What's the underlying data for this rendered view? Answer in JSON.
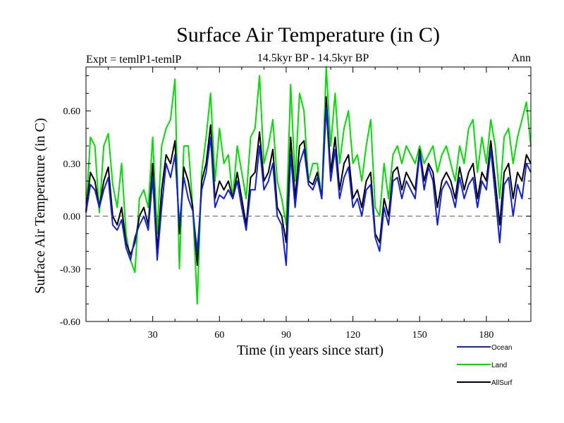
{
  "chart_data": {
    "type": "line",
    "title": "Surface Air Temperature (in C)",
    "subtitle": "14.5kyr BP - 14.5kyr BP",
    "left_label": "Expt = temlP1-temlP",
    "right_label": "Ann",
    "xlabel": "Time (in years since start)",
    "ylabel": "Surface Air Temperature (in C)",
    "xlim": [
      0,
      200
    ],
    "ylim": [
      -0.6,
      0.85
    ],
    "xticks": [
      30,
      60,
      90,
      120,
      150,
      180
    ],
    "yticks": [
      -0.6,
      -0.3,
      0.0,
      0.3,
      0.6
    ],
    "ytick_labels": [
      "-0.60",
      "-0.30",
      "0.00",
      "0.30",
      "0.60"
    ],
    "zero_line": true,
    "legend_position": "bottom-right",
    "series": [
      {
        "name": "Land",
        "color": "#00e000",
        "points": [
          [
            0,
            0.03
          ],
          [
            2,
            0.45
          ],
          [
            4,
            0.4
          ],
          [
            6,
            0.02
          ],
          [
            8,
            0.4
          ],
          [
            10,
            0.47
          ],
          [
            12,
            0.18
          ],
          [
            14,
            0.05
          ],
          [
            16,
            0.3
          ],
          [
            18,
            -0.1
          ],
          [
            20,
            -0.25
          ],
          [
            22,
            -0.32
          ],
          [
            24,
            0.1
          ],
          [
            26,
            0.15
          ],
          [
            28,
            0.05
          ],
          [
            30,
            0.45
          ],
          [
            32,
            -0.1
          ],
          [
            34,
            0.4
          ],
          [
            36,
            0.5
          ],
          [
            38,
            0.55
          ],
          [
            40,
            0.78
          ],
          [
            42,
            -0.3
          ],
          [
            44,
            0.4
          ],
          [
            46,
            0.4
          ],
          [
            48,
            0.05
          ],
          [
            50,
            -0.5
          ],
          [
            52,
            0.25
          ],
          [
            54,
            0.45
          ],
          [
            56,
            0.7
          ],
          [
            58,
            0.2
          ],
          [
            60,
            0.5
          ],
          [
            62,
            0.3
          ],
          [
            64,
            0.35
          ],
          [
            66,
            0.1
          ],
          [
            68,
            0.4
          ],
          [
            70,
            0.25
          ],
          [
            72,
            0.1
          ],
          [
            74,
            0.45
          ],
          [
            76,
            0.5
          ],
          [
            78,
            0.8
          ],
          [
            80,
            0.3
          ],
          [
            82,
            0.4
          ],
          [
            84,
            0.55
          ],
          [
            86,
            0.2
          ],
          [
            88,
            0.1
          ],
          [
            90,
            -0.05
          ],
          [
            92,
            0.75
          ],
          [
            94,
            0.2
          ],
          [
            96,
            0.7
          ],
          [
            98,
            0.6
          ],
          [
            100,
            0.2
          ],
          [
            102,
            0.3
          ],
          [
            104,
            0.3
          ],
          [
            106,
            0.1
          ],
          [
            108,
            0.85
          ],
          [
            110,
            0.4
          ],
          [
            112,
            0.7
          ],
          [
            114,
            0.3
          ],
          [
            116,
            0.5
          ],
          [
            118,
            0.6
          ],
          [
            120,
            0.3
          ],
          [
            122,
            0.35
          ],
          [
            124,
            0.2
          ],
          [
            126,
            0.4
          ],
          [
            128,
            0.55
          ],
          [
            130,
            0.05
          ],
          [
            132,
            0.0
          ],
          [
            134,
            0.3
          ],
          [
            136,
            0.1
          ],
          [
            138,
            0.35
          ],
          [
            140,
            0.4
          ],
          [
            142,
            0.3
          ],
          [
            144,
            0.4
          ],
          [
            146,
            0.35
          ],
          [
            148,
            0.3
          ],
          [
            150,
            0.4
          ],
          [
            152,
            0.3
          ],
          [
            154,
            0.35
          ],
          [
            156,
            0.4
          ],
          [
            158,
            0.25
          ],
          [
            160,
            0.35
          ],
          [
            162,
            0.4
          ],
          [
            164,
            0.3
          ],
          [
            166,
            0.2
          ],
          [
            168,
            0.4
          ],
          [
            170,
            0.3
          ],
          [
            172,
            0.5
          ],
          [
            174,
            0.55
          ],
          [
            176,
            0.25
          ],
          [
            178,
            0.45
          ],
          [
            180,
            0.3
          ],
          [
            182,
            0.55
          ],
          [
            184,
            0.4
          ],
          [
            186,
            0.1
          ],
          [
            188,
            0.45
          ],
          [
            190,
            0.5
          ],
          [
            192,
            0.3
          ],
          [
            194,
            0.45
          ],
          [
            196,
            0.55
          ],
          [
            198,
            0.65
          ],
          [
            200,
            0.4
          ]
        ]
      },
      {
        "name": "AllSurf",
        "color": "#000000",
        "points": [
          [
            0,
            0.03
          ],
          [
            2,
            0.25
          ],
          [
            4,
            0.2
          ],
          [
            6,
            0.05
          ],
          [
            8,
            0.2
          ],
          [
            10,
            0.28
          ],
          [
            12,
            0.0
          ],
          [
            14,
            -0.05
          ],
          [
            16,
            0.05
          ],
          [
            18,
            -0.15
          ],
          [
            20,
            -0.22
          ],
          [
            22,
            -0.15
          ],
          [
            24,
            0.0
          ],
          [
            26,
            0.05
          ],
          [
            28,
            -0.05
          ],
          [
            30,
            0.3
          ],
          [
            32,
            -0.2
          ],
          [
            34,
            0.15
          ],
          [
            36,
            0.35
          ],
          [
            38,
            0.3
          ],
          [
            40,
            0.43
          ],
          [
            42,
            -0.1
          ],
          [
            44,
            0.28
          ],
          [
            46,
            0.2
          ],
          [
            48,
            0.05
          ],
          [
            50,
            -0.28
          ],
          [
            52,
            0.2
          ],
          [
            54,
            0.3
          ],
          [
            56,
            0.52
          ],
          [
            58,
            0.1
          ],
          [
            60,
            0.2
          ],
          [
            62,
            0.15
          ],
          [
            64,
            0.2
          ],
          [
            66,
            0.1
          ],
          [
            68,
            0.25
          ],
          [
            70,
            0.1
          ],
          [
            72,
            -0.05
          ],
          [
            74,
            0.22
          ],
          [
            76,
            0.25
          ],
          [
            78,
            0.48
          ],
          [
            80,
            0.2
          ],
          [
            82,
            0.25
          ],
          [
            84,
            0.38
          ],
          [
            86,
            0.05
          ],
          [
            88,
            0.0
          ],
          [
            90,
            -0.15
          ],
          [
            92,
            0.45
          ],
          [
            94,
            0.1
          ],
          [
            96,
            0.4
          ],
          [
            98,
            0.43
          ],
          [
            100,
            0.2
          ],
          [
            102,
            0.18
          ],
          [
            104,
            0.25
          ],
          [
            106,
            0.1
          ],
          [
            108,
            0.68
          ],
          [
            110,
            0.25
          ],
          [
            112,
            0.45
          ],
          [
            114,
            0.15
          ],
          [
            116,
            0.3
          ],
          [
            118,
            0.35
          ],
          [
            120,
            0.1
          ],
          [
            122,
            0.15
          ],
          [
            124,
            0.05
          ],
          [
            126,
            0.2
          ],
          [
            128,
            0.25
          ],
          [
            130,
            -0.1
          ],
          [
            132,
            -0.15
          ],
          [
            134,
            0.1
          ],
          [
            136,
            0.0
          ],
          [
            138,
            0.25
          ],
          [
            140,
            0.28
          ],
          [
            142,
            0.15
          ],
          [
            144,
            0.25
          ],
          [
            146,
            0.2
          ],
          [
            148,
            0.15
          ],
          [
            150,
            0.38
          ],
          [
            152,
            0.2
          ],
          [
            154,
            0.3
          ],
          [
            156,
            0.25
          ],
          [
            158,
            0.05
          ],
          [
            160,
            0.2
          ],
          [
            162,
            0.25
          ],
          [
            164,
            0.2
          ],
          [
            166,
            0.1
          ],
          [
            168,
            0.28
          ],
          [
            170,
            0.15
          ],
          [
            172,
            0.25
          ],
          [
            174,
            0.3
          ],
          [
            176,
            0.1
          ],
          [
            178,
            0.25
          ],
          [
            180,
            0.2
          ],
          [
            182,
            0.43
          ],
          [
            184,
            0.2
          ],
          [
            186,
            -0.05
          ],
          [
            188,
            0.25
          ],
          [
            190,
            0.3
          ],
          [
            192,
            0.1
          ],
          [
            194,
            0.25
          ],
          [
            196,
            0.2
          ],
          [
            198,
            0.35
          ],
          [
            200,
            0.3
          ]
        ]
      },
      {
        "name": "Ocean",
        "color": "#1020e0",
        "points": [
          [
            0,
            0.02
          ],
          [
            2,
            0.18
          ],
          [
            4,
            0.15
          ],
          [
            6,
            0.05
          ],
          [
            8,
            0.15
          ],
          [
            10,
            0.22
          ],
          [
            12,
            -0.05
          ],
          [
            14,
            -0.08
          ],
          [
            16,
            -0.02
          ],
          [
            18,
            -0.18
          ],
          [
            20,
            -0.25
          ],
          [
            22,
            -0.12
          ],
          [
            24,
            -0.05
          ],
          [
            26,
            0.0
          ],
          [
            28,
            -0.08
          ],
          [
            30,
            0.22
          ],
          [
            32,
            -0.25
          ],
          [
            34,
            0.05
          ],
          [
            36,
            0.3
          ],
          [
            38,
            0.22
          ],
          [
            40,
            0.35
          ],
          [
            42,
            -0.05
          ],
          [
            44,
            0.22
          ],
          [
            46,
            0.1
          ],
          [
            48,
            0.03
          ],
          [
            50,
            -0.2
          ],
          [
            52,
            0.15
          ],
          [
            54,
            0.25
          ],
          [
            56,
            0.45
          ],
          [
            58,
            0.05
          ],
          [
            60,
            0.12
          ],
          [
            62,
            0.1
          ],
          [
            64,
            0.15
          ],
          [
            66,
            0.1
          ],
          [
            68,
            0.2
          ],
          [
            70,
            0.05
          ],
          [
            72,
            -0.08
          ],
          [
            74,
            0.15
          ],
          [
            76,
            0.15
          ],
          [
            78,
            0.4
          ],
          [
            80,
            0.15
          ],
          [
            82,
            0.2
          ],
          [
            84,
            0.3
          ],
          [
            86,
            0.0
          ],
          [
            88,
            -0.05
          ],
          [
            90,
            -0.28
          ],
          [
            92,
            0.35
          ],
          [
            94,
            0.05
          ],
          [
            96,
            0.3
          ],
          [
            98,
            0.38
          ],
          [
            100,
            0.18
          ],
          [
            102,
            0.15
          ],
          [
            104,
            0.22
          ],
          [
            106,
            0.1
          ],
          [
            108,
            0.62
          ],
          [
            110,
            0.2
          ],
          [
            112,
            0.38
          ],
          [
            114,
            0.1
          ],
          [
            116,
            0.22
          ],
          [
            118,
            0.28
          ],
          [
            120,
            0.05
          ],
          [
            122,
            0.1
          ],
          [
            124,
            0.0
          ],
          [
            126,
            0.15
          ],
          [
            128,
            0.18
          ],
          [
            130,
            -0.12
          ],
          [
            132,
            -0.2
          ],
          [
            134,
            0.05
          ],
          [
            136,
            -0.05
          ],
          [
            138,
            0.2
          ],
          [
            140,
            0.22
          ],
          [
            142,
            0.1
          ],
          [
            144,
            0.2
          ],
          [
            146,
            0.15
          ],
          [
            148,
            0.1
          ],
          [
            150,
            0.36
          ],
          [
            152,
            0.15
          ],
          [
            154,
            0.28
          ],
          [
            156,
            0.2
          ],
          [
            158,
            -0.05
          ],
          [
            160,
            0.15
          ],
          [
            162,
            0.2
          ],
          [
            164,
            0.15
          ],
          [
            166,
            0.05
          ],
          [
            168,
            0.22
          ],
          [
            170,
            0.1
          ],
          [
            172,
            0.18
          ],
          [
            174,
            0.22
          ],
          [
            176,
            0.05
          ],
          [
            178,
            0.2
          ],
          [
            180,
            0.15
          ],
          [
            182,
            0.38
          ],
          [
            184,
            0.12
          ],
          [
            186,
            -0.15
          ],
          [
            188,
            0.18
          ],
          [
            190,
            0.22
          ],
          [
            192,
            0.0
          ],
          [
            194,
            0.18
          ],
          [
            196,
            0.1
          ],
          [
            198,
            0.3
          ],
          [
            200,
            0.25
          ]
        ]
      }
    ],
    "legend": [
      {
        "name": "Ocean",
        "color": "#1020e0"
      },
      {
        "name": "Land",
        "color": "#00e000"
      },
      {
        "name": "AllSurf",
        "color": "#000000"
      }
    ]
  }
}
